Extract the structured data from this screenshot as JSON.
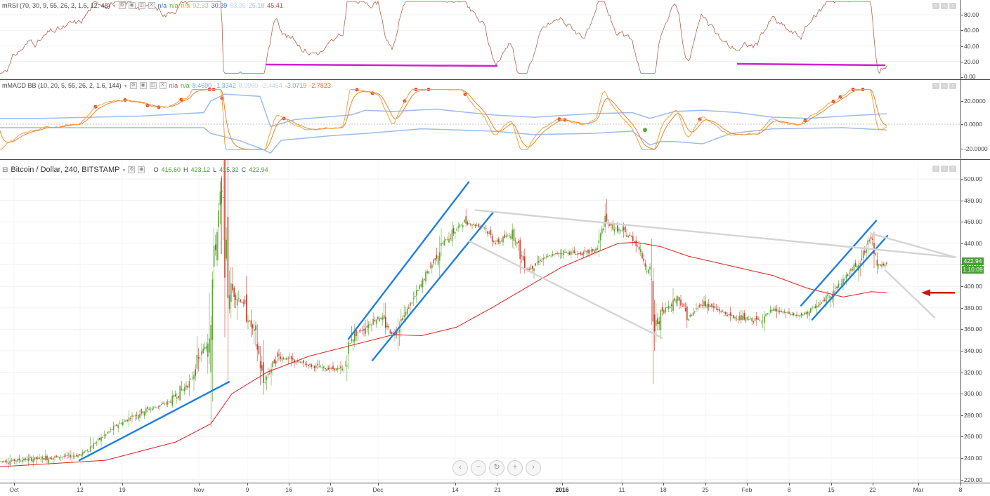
{
  "rsi_pane": {
    "title": "mRSI (70, 30, 9, 55, 26, 2, 1.6, 12, 48)",
    "values": [
      {
        "text": "n/a",
        "color": "#3b6bc8"
      },
      {
        "text": "n/a",
        "color": "#5aa832"
      },
      {
        "text": "n/a",
        "color": "#e59a2a"
      },
      {
        "text": "92.33",
        "color": "#9db9e6"
      },
      {
        "text": "30.39",
        "color": "#3b6bc8"
      },
      {
        "text": "83.36",
        "color": "#c3d3ee"
      },
      {
        "text": "25.18",
        "color": "#9db9e6"
      },
      {
        "text": "45.41",
        "color": "#b84a3c"
      }
    ],
    "axis": [
      "80.00",
      "60.00",
      "40.00",
      "20.00",
      "0.00"
    ],
    "line_color": "#b5614f",
    "marker_color": "#d020d0"
  },
  "macd_pane": {
    "title": "mMACD BB (10, 20, 5, 55, 26, 2, 1.6, 144)",
    "values": [
      {
        "text": "n/a",
        "color": "#e0342b"
      },
      {
        "text": "n/a",
        "color": "#5aa832"
      },
      {
        "text": "8.4690",
        "color": "#7aa2e0"
      },
      {
        "text": "-1.3342",
        "color": "#7aa2e0"
      },
      {
        "text": "8.0960",
        "color": "#c3d3ee"
      },
      {
        "text": "-2.4454",
        "color": "#c3d3ee"
      },
      {
        "text": "-3.0719",
        "color": "#e8862c"
      },
      {
        "text": "-2.7823",
        "color": "#d9652b"
      }
    ],
    "axis": [
      "20.0000",
      "0.0000",
      "-20.0000"
    ]
  },
  "price_pane": {
    "title": "Bitcoin / Dollar, 240, BITSTAMP",
    "ohlc": [
      {
        "label": "O",
        "value": "416.60"
      },
      {
        "label": "H",
        "value": "423.12"
      },
      {
        "label": "L",
        "value": "415.32"
      },
      {
        "label": "C",
        "value": "422.94"
      }
    ],
    "axis": [
      "500.00",
      "480.00",
      "460.00",
      "440.00",
      "420.00",
      "400.00",
      "380.00",
      "360.00",
      "340.00",
      "320.00",
      "300.00",
      "280.00",
      "260.00",
      "240.00",
      "220.00"
    ],
    "last_price": "422.94",
    "countdown": "1:10:09",
    "tag_color": "#4c9b38",
    "up_color": "#5aa832",
    "down_color": "#c9412f",
    "ma_color": "#e81c1c",
    "trend_blue": "#1e7fe0",
    "trend_gray": "#d4d4d4",
    "arrow_color": "#d01515"
  },
  "time_axis": [
    "Oct",
    "12",
    "19",
    "Nov",
    "9",
    "16",
    "23",
    "Dec",
    "14",
    "21",
    "2016",
    "11",
    "18",
    "25",
    "Feb",
    "8",
    "15",
    "22",
    "Mar",
    "8"
  ],
  "nav_buttons": [
    "‹",
    "−",
    "↻",
    "+",
    "›"
  ],
  "corner_buttons": [
    "↑",
    "↓",
    "↕"
  ]
}
